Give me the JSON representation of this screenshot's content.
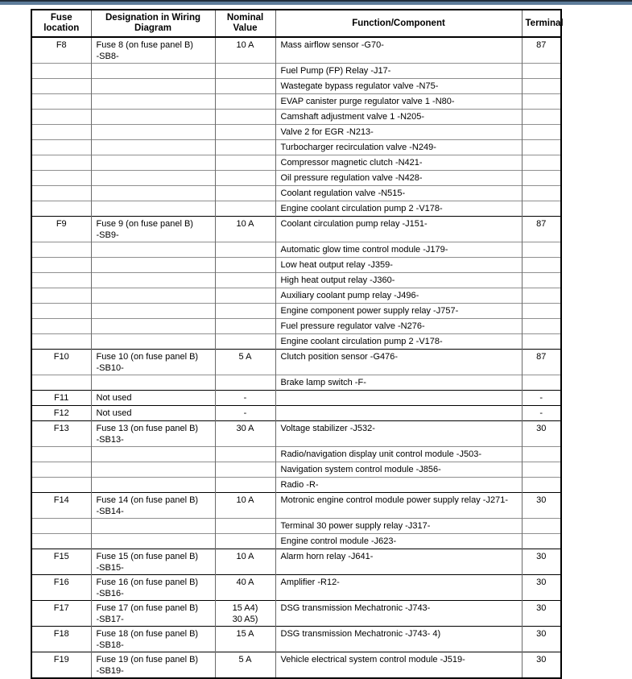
{
  "page": {
    "top_band": {
      "dark_color": "#222e3b",
      "blue_color": "#5d7c9a"
    }
  },
  "table": {
    "headers": [
      "Fuse\nlocation",
      "Designation in Wiring\nDiagram",
      "Nominal\nValue",
      "Function/Component",
      "Terminal"
    ],
    "rows": [
      {
        "fuse": "F8",
        "designation": "Fuse 8 (on fuse panel B)\n-SB8-",
        "nominal": "10 A",
        "function": "Mass airflow sensor -G70-",
        "terminal": "87",
        "start": true,
        "tall": true
      },
      {
        "fuse": "",
        "designation": "",
        "nominal": "",
        "function": "Fuel Pump (FP) Relay -J17-",
        "terminal": ""
      },
      {
        "fuse": "",
        "designation": "",
        "nominal": "",
        "function": "Wastegate bypass regulator valve -N75-",
        "terminal": ""
      },
      {
        "fuse": "",
        "designation": "",
        "nominal": "",
        "function": "EVAP canister purge regulator valve 1 -N80-",
        "terminal": ""
      },
      {
        "fuse": "",
        "designation": "",
        "nominal": "",
        "function": "Camshaft adjustment valve 1 -N205-",
        "terminal": ""
      },
      {
        "fuse": "",
        "designation": "",
        "nominal": "",
        "function": "Valve 2 for EGR -N213-",
        "terminal": ""
      },
      {
        "fuse": "",
        "designation": "",
        "nominal": "",
        "function": "Turbocharger recirculation valve -N249-",
        "terminal": ""
      },
      {
        "fuse": "",
        "designation": "",
        "nominal": "",
        "function": "Compressor magnetic clutch -N421-",
        "terminal": ""
      },
      {
        "fuse": "",
        "designation": "",
        "nominal": "",
        "function": "Oil pressure regulation valve -N428-",
        "terminal": ""
      },
      {
        "fuse": "",
        "designation": "",
        "nominal": "",
        "function": "Coolant regulation valve -N515-",
        "terminal": ""
      },
      {
        "fuse": "",
        "designation": "",
        "nominal": "",
        "function": "Engine coolant circulation pump 2 -V178-",
        "terminal": ""
      },
      {
        "fuse": "F9",
        "designation": "Fuse 9 (on fuse panel B)\n-SB9-",
        "nominal": "10 A",
        "function": "Coolant circulation pump relay -J151-",
        "terminal": "87",
        "start": true,
        "tall": true
      },
      {
        "fuse": "",
        "designation": "",
        "nominal": "",
        "function": "Automatic glow time control module -J179-",
        "terminal": ""
      },
      {
        "fuse": "",
        "designation": "",
        "nominal": "",
        "function": "Low heat output relay -J359-",
        "terminal": ""
      },
      {
        "fuse": "",
        "designation": "",
        "nominal": "",
        "function": "High heat output relay -J360-",
        "terminal": ""
      },
      {
        "fuse": "",
        "designation": "",
        "nominal": "",
        "function": "Auxiliary coolant pump relay -J496-",
        "terminal": ""
      },
      {
        "fuse": "",
        "designation": "",
        "nominal": "",
        "function": "Engine component power supply relay -J757-",
        "terminal": ""
      },
      {
        "fuse": "",
        "designation": "",
        "nominal": "",
        "function": "Fuel pressure regulator valve -N276-",
        "terminal": ""
      },
      {
        "fuse": "",
        "designation": "",
        "nominal": "",
        "function": "Engine coolant circulation pump 2 -V178-",
        "terminal": ""
      },
      {
        "fuse": "F10",
        "designation": "Fuse 10 (on fuse panel B)\n-SB10-",
        "nominal": "5 A",
        "function": "Clutch position sensor -G476-",
        "terminal": "87",
        "start": true,
        "tall": true
      },
      {
        "fuse": "",
        "designation": "",
        "nominal": "",
        "function": "Brake lamp switch -F-",
        "terminal": ""
      },
      {
        "fuse": "F11",
        "designation": "Not used",
        "nominal": "-",
        "function": "",
        "terminal": "-",
        "start": true
      },
      {
        "fuse": "F12",
        "designation": "Not used",
        "nominal": "-",
        "function": "",
        "terminal": "-",
        "start": true
      },
      {
        "fuse": "F13",
        "designation": "Fuse 13 (on fuse panel B)\n-SB13-",
        "nominal": "30 A",
        "function": "Voltage stabilizer -J532-",
        "terminal": "30",
        "start": true,
        "tall": true
      },
      {
        "fuse": "",
        "designation": "",
        "nominal": "",
        "function": "Radio/navigation display unit control module -J503-",
        "terminal": ""
      },
      {
        "fuse": "",
        "designation": "",
        "nominal": "",
        "function": "Navigation system control module -J856-",
        "terminal": ""
      },
      {
        "fuse": "",
        "designation": "",
        "nominal": "",
        "function": "Radio -R-",
        "terminal": ""
      },
      {
        "fuse": "F14",
        "designation": "Fuse 14 (on fuse panel B)\n-SB14-",
        "nominal": "10 A",
        "function": "Motronic engine control module power supply relay -J271-",
        "terminal": "30",
        "start": true,
        "tall": true
      },
      {
        "fuse": "",
        "designation": "",
        "nominal": "",
        "function": "Terminal 30 power supply relay -J317-",
        "terminal": ""
      },
      {
        "fuse": "",
        "designation": "",
        "nominal": "",
        "function": "Engine control module -J623-",
        "terminal": ""
      },
      {
        "fuse": "F15",
        "designation": "Fuse 15 (on fuse panel B)\n-SB15-",
        "nominal": "10 A",
        "function": "Alarm horn relay -J641-",
        "terminal": "30",
        "start": true,
        "tall": true
      },
      {
        "fuse": "F16",
        "designation": "Fuse 16 (on fuse panel B)\n-SB16-",
        "nominal": "40 A",
        "function": "Amplifier -R12-",
        "terminal": "30",
        "start": true,
        "tall": true
      },
      {
        "fuse": "F17",
        "designation": "Fuse 17 (on fuse panel B)\n-SB17-",
        "nominal": "15 A4)\n30 A5)",
        "function": "DSG transmission Mechatronic -J743-",
        "terminal": "30",
        "start": true,
        "tall": true
      },
      {
        "fuse": "F18",
        "designation": "Fuse 18 (on fuse panel B)\n-SB18-",
        "nominal": "15 A",
        "function": "DSG transmission Mechatronic -J743- 4)",
        "terminal": "30",
        "start": true,
        "tall": true
      },
      {
        "fuse": "F19",
        "designation": "Fuse 19 (on fuse panel B)\n-SB19-",
        "nominal": "5 A",
        "function": "Vehicle electrical system control module -J519-",
        "terminal": "30",
        "start": true,
        "tall": true
      }
    ]
  }
}
